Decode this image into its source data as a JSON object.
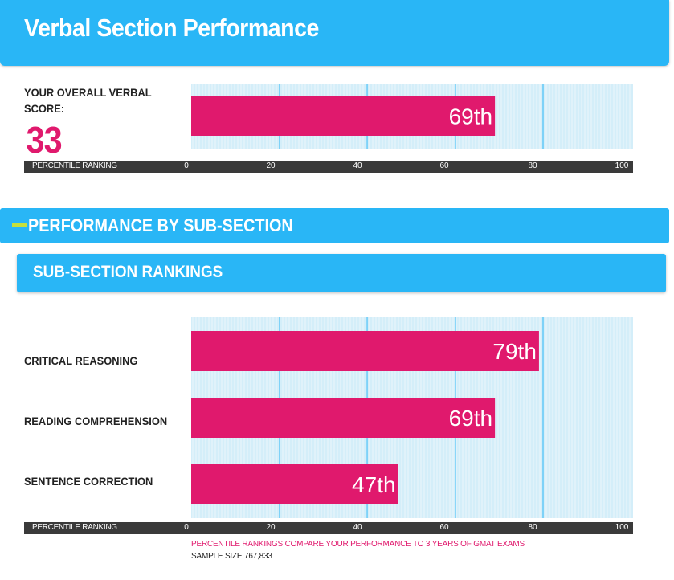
{
  "header": {
    "title": "Verbal Section Performance"
  },
  "overall": {
    "label": "YOUR OVERALL VERBAL SCORE:",
    "score": "33"
  },
  "section": {
    "title": "PERFORMANCE BY SUB-SECTION"
  },
  "subsection": {
    "title": "SUB-SECTION RANKINGS"
  },
  "axis": {
    "title": "PERCENTILE RANKING",
    "ticks": [
      "0",
      "20",
      "40",
      "60",
      "80",
      "100"
    ]
  },
  "colors": {
    "accent": "#29b6f6",
    "bar": "#e0196d",
    "track": "#d4eef9",
    "gridline": "#29b6f6",
    "axis": "#3a3a3a",
    "dash": "#c6e03b"
  },
  "footer": {
    "note": "PERCENTILE RANKINGS COMPARE YOUR PERFORMANCE TO 3 YEARS OF GMAT EXAMS",
    "sample": "SAMPLE SIZE 767,833"
  },
  "chart_data": [
    {
      "type": "bar",
      "orientation": "horizontal",
      "categories": [
        "Overall Verbal"
      ],
      "values": [
        69
      ],
      "data_labels": [
        "69th"
      ],
      "xlabel": "PERCENTILE RANKING",
      "xlim": [
        0,
        100
      ],
      "xticks": [
        0,
        20,
        40,
        60,
        80,
        100
      ]
    },
    {
      "type": "bar",
      "orientation": "horizontal",
      "categories": [
        "CRITICAL REASONING",
        "READING COMPREHENSION",
        "SENTENCE CORRECTION"
      ],
      "values": [
        79,
        69,
        47
      ],
      "data_labels": [
        "79th",
        "69th",
        "47th"
      ],
      "xlabel": "PERCENTILE RANKING",
      "xlim": [
        0,
        100
      ],
      "xticks": [
        0,
        20,
        40,
        60,
        80,
        100
      ]
    }
  ]
}
